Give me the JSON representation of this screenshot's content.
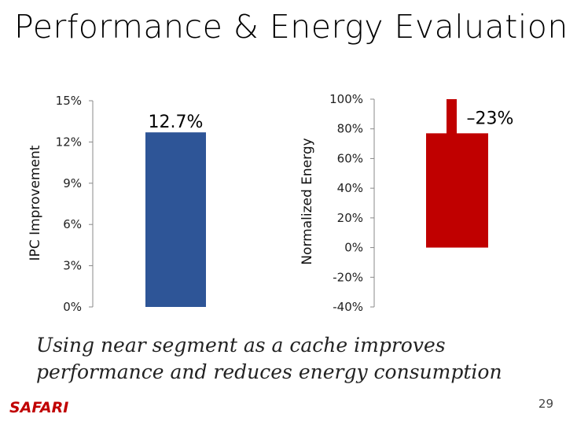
{
  "slide": {
    "title": "Performance & Energy Evaluation",
    "caption": "Using near segment as a cache improves performance and reduces energy consumption",
    "logo_text": "SAFARI",
    "page_number": "29"
  },
  "colors": {
    "ipc_bar": "#2E5597",
    "energy_bar": "#C00000",
    "axis": "#888888",
    "logo": "#C00000"
  },
  "chart_data": [
    {
      "type": "bar",
      "ylabel": "IPC Improvement",
      "yticks": [
        "15%",
        "12%",
        "9%",
        "6%",
        "3%",
        "0%"
      ],
      "ylim": [
        0,
        15
      ],
      "values": [
        12.7
      ],
      "data_label": "12.7%",
      "grid": false
    },
    {
      "type": "bar",
      "ylabel": "Normalized Energy",
      "yticks": [
        "100%",
        "80%",
        "60%",
        "40%",
        "20%",
        "0%",
        "-20%",
        "-40%"
      ],
      "ylim": [
        -40,
        100
      ],
      "values": [
        77
      ],
      "reference": 100,
      "data_label": "–23%",
      "grid": false
    }
  ]
}
